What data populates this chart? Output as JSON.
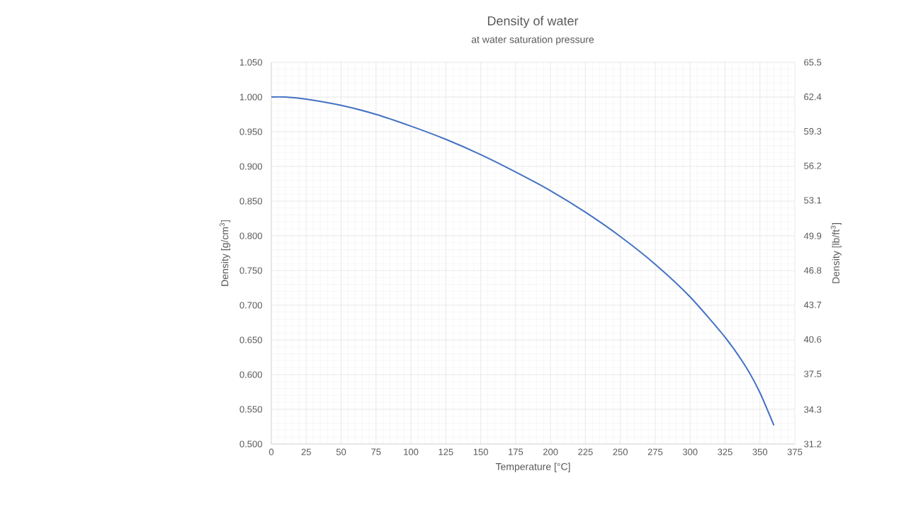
{
  "chart_data": {
    "type": "line",
    "title": "Density of water",
    "subtitle": "at water saturation pressure",
    "xlabel": "Temperature [°C]",
    "ylabel": "Density  [g/cm$^{3}$]",
    "y2label": "Density  [lb/ft$^{3}$]",
    "x": [
      0,
      10,
      25,
      50,
      75,
      100,
      125,
      150,
      175,
      200,
      225,
      250,
      275,
      300,
      325,
      340,
      350,
      360
    ],
    "series": [
      {
        "color": "#4472c4",
        "values": [
          1.0,
          1.0,
          0.997,
          0.988,
          0.975,
          0.958,
          0.939,
          0.917,
          0.892,
          0.865,
          0.834,
          0.799,
          0.759,
          0.712,
          0.654,
          0.611,
          0.574,
          0.527
        ]
      }
    ],
    "xlim": [
      0,
      375
    ],
    "xticks": [
      0,
      25,
      50,
      75,
      100,
      125,
      150,
      175,
      200,
      225,
      250,
      275,
      300,
      325,
      350,
      375
    ],
    "ylim": [
      0.5,
      1.05
    ],
    "yticks": [
      {
        "value": 0.5,
        "label": "0.500"
      },
      {
        "value": 0.55,
        "label": "0.550"
      },
      {
        "value": 0.6,
        "label": "0.600"
      },
      {
        "value": 0.65,
        "label": "0.650"
      },
      {
        "value": 0.7,
        "label": "0.700"
      },
      {
        "value": 0.75,
        "label": "0.750"
      },
      {
        "value": 0.8,
        "label": "0.800"
      },
      {
        "value": 0.85,
        "label": "0.850"
      },
      {
        "value": 0.9,
        "label": "0.900"
      },
      {
        "value": 0.95,
        "label": "0.950"
      },
      {
        "value": 1.0,
        "label": "1.000"
      },
      {
        "value": 1.05,
        "label": "1.050"
      }
    ],
    "y2lim": [
      31.2,
      65.5
    ],
    "y2ticks": [
      31.2,
      34.3,
      37.5,
      40.6,
      43.7,
      46.8,
      49.9,
      53.1,
      56.2,
      59.3,
      62.4,
      65.5
    ],
    "grid": true,
    "marker": "none",
    "line_style": "solid"
  }
}
